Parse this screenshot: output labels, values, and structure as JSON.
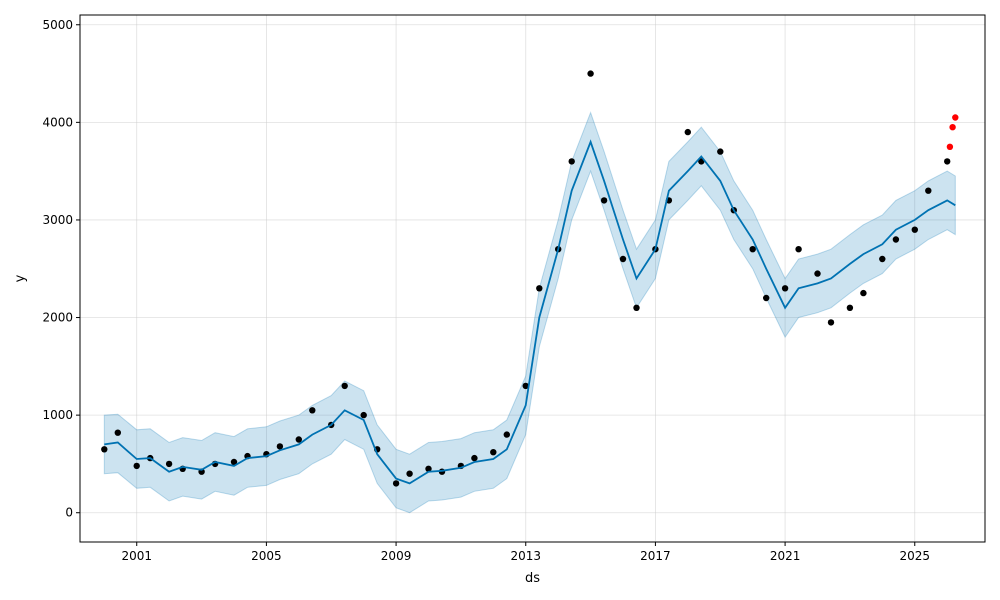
{
  "chart_data": {
    "type": "line",
    "title": "",
    "xlabel": "ds",
    "ylabel": "y",
    "xlim": [
      "1999-04-01",
      "2027-03-01"
    ],
    "ylim": [
      -300,
      5100
    ],
    "x_ticks": [
      "2001",
      "2005",
      "2009",
      "2013",
      "2017",
      "2021",
      "2025"
    ],
    "y_ticks": [
      0,
      1000,
      2000,
      3000,
      4000,
      5000
    ],
    "grid": true,
    "legend": "none",
    "colors": {
      "observed": "#000000",
      "forecast_line": "#0072B2",
      "uncertainty_band": "#0072B2",
      "recent_points": "#ff0000"
    },
    "series": [
      {
        "name": "",
        "role": "forecast yhat",
        "x": [
          "2000-01",
          "2000-06",
          "2001-01",
          "2001-06",
          "2002-01",
          "2002-06",
          "2003-01",
          "2003-06",
          "2004-01",
          "2004-06",
          "2005-01",
          "2005-06",
          "2006-01",
          "2006-06",
          "2007-01",
          "2007-06",
          "2008-01",
          "2008-06",
          "2009-01",
          "2009-06",
          "2010-01",
          "2010-06",
          "2011-01",
          "2011-06",
          "2012-01",
          "2012-06",
          "2013-01",
          "2013-06",
          "2014-01",
          "2014-06",
          "2015-01",
          "2015-06",
          "2016-01",
          "2016-06",
          "2017-01",
          "2017-06",
          "2018-01",
          "2018-06",
          "2019-01",
          "2019-06",
          "2020-01",
          "2020-06",
          "2021-01",
          "2021-06",
          "2022-01",
          "2022-06",
          "2023-01",
          "2023-06",
          "2024-01",
          "2024-06",
          "2025-01",
          "2025-06",
          "2026-01",
          "2026-04"
        ],
        "values": [
          700,
          720,
          550,
          560,
          420,
          470,
          440,
          520,
          480,
          560,
          580,
          640,
          700,
          800,
          900,
          1050,
          950,
          600,
          350,
          300,
          420,
          430,
          460,
          520,
          550,
          650,
          1100,
          2000,
          2700,
          3300,
          3800,
          3400,
          2800,
          2400,
          2700,
          3300,
          3500,
          3650,
          3400,
          3100,
          2800,
          2500,
          2100,
          2300,
          2350,
          2400,
          2550,
          2650,
          2750,
          2900,
          3000,
          3100,
          3200,
          3150
        ]
      },
      {
        "name": "",
        "role": "uncertainty upper",
        "x": [
          "2000-01",
          "2000-06",
          "2001-01",
          "2001-06",
          "2002-01",
          "2002-06",
          "2003-01",
          "2003-06",
          "2004-01",
          "2004-06",
          "2005-01",
          "2005-06",
          "2006-01",
          "2006-06",
          "2007-01",
          "2007-06",
          "2008-01",
          "2008-06",
          "2009-01",
          "2009-06",
          "2010-01",
          "2010-06",
          "2011-01",
          "2011-06",
          "2012-01",
          "2012-06",
          "2013-01",
          "2013-06",
          "2014-01",
          "2014-06",
          "2015-01",
          "2015-06",
          "2016-01",
          "2016-06",
          "2017-01",
          "2017-06",
          "2018-01",
          "2018-06",
          "2019-01",
          "2019-06",
          "2020-01",
          "2020-06",
          "2021-01",
          "2021-06",
          "2022-01",
          "2022-06",
          "2023-01",
          "2023-06",
          "2024-01",
          "2024-06",
          "2025-01",
          "2025-06",
          "2026-01",
          "2026-04"
        ],
        "values": [
          1000,
          1010,
          850,
          860,
          720,
          770,
          740,
          820,
          780,
          860,
          880,
          940,
          1000,
          1100,
          1200,
          1350,
          1250,
          900,
          650,
          600,
          720,
          730,
          760,
          820,
          850,
          950,
          1400,
          2300,
          3000,
          3600,
          4100,
          3700,
          3100,
          2700,
          3000,
          3600,
          3800,
          3950,
          3700,
          3400,
          3100,
          2800,
          2400,
          2600,
          2650,
          2700,
          2850,
          2950,
          3050,
          3200,
          3300,
          3400,
          3500,
          3450
        ]
      },
      {
        "name": "",
        "role": "uncertainty lower",
        "x": [
          "2000-01",
          "2000-06",
          "2001-01",
          "2001-06",
          "2002-01",
          "2002-06",
          "2003-01",
          "2003-06",
          "2004-01",
          "2004-06",
          "2005-01",
          "2005-06",
          "2006-01",
          "2006-06",
          "2007-01",
          "2007-06",
          "2008-01",
          "2008-06",
          "2009-01",
          "2009-06",
          "2010-01",
          "2010-06",
          "2011-01",
          "2011-06",
          "2012-01",
          "2012-06",
          "2013-01",
          "2013-06",
          "2014-01",
          "2014-06",
          "2015-01",
          "2015-06",
          "2016-01",
          "2016-06",
          "2017-01",
          "2017-06",
          "2018-01",
          "2018-06",
          "2019-01",
          "2019-06",
          "2020-01",
          "2020-06",
          "2021-01",
          "2021-06",
          "2022-01",
          "2022-06",
          "2023-01",
          "2023-06",
          "2024-01",
          "2024-06",
          "2025-01",
          "2025-06",
          "2026-01",
          "2026-04"
        ],
        "values": [
          400,
          410,
          250,
          260,
          120,
          170,
          140,
          220,
          180,
          260,
          280,
          340,
          400,
          500,
          600,
          750,
          650,
          300,
          50,
          0,
          120,
          130,
          160,
          220,
          250,
          350,
          800,
          1700,
          2400,
          3000,
          3500,
          3100,
          2500,
          2100,
          2400,
          3000,
          3200,
          3350,
          3100,
          2800,
          2500,
          2200,
          1800,
          2000,
          2050,
          2100,
          2250,
          2350,
          2450,
          2600,
          2700,
          2800,
          2900,
          2850
        ]
      },
      {
        "name": "",
        "role": "observed",
        "x": [
          "2000-01",
          "2000-06",
          "2001-01",
          "2001-06",
          "2002-01",
          "2002-06",
          "2003-01",
          "2003-06",
          "2004-01",
          "2004-06",
          "2005-01",
          "2005-06",
          "2006-01",
          "2006-06",
          "2007-01",
          "2007-06",
          "2008-01",
          "2008-06",
          "2009-01",
          "2009-06",
          "2010-01",
          "2010-06",
          "2011-01",
          "2011-06",
          "2012-01",
          "2012-06",
          "2013-01",
          "2013-06",
          "2014-01",
          "2014-06",
          "2015-01",
          "2015-06",
          "2016-01",
          "2016-06",
          "2017-01",
          "2017-06",
          "2018-01",
          "2018-06",
          "2019-01",
          "2019-06",
          "2020-01",
          "2020-06",
          "2021-01",
          "2021-06",
          "2022-01",
          "2022-06",
          "2023-01",
          "2023-06",
          "2024-01",
          "2024-06",
          "2025-01",
          "2025-06",
          "2026-01"
        ],
        "values": [
          650,
          820,
          480,
          560,
          500,
          450,
          420,
          500,
          520,
          580,
          600,
          680,
          750,
          1050,
          900,
          1300,
          1000,
          650,
          300,
          400,
          450,
          420,
          480,
          560,
          620,
          800,
          1300,
          2300,
          2700,
          3600,
          4500,
          3200,
          2600,
          2100,
          2700,
          3200,
          3900,
          3600,
          3700,
          3100,
          2700,
          2200,
          2300,
          2700,
          2450,
          1950,
          2100,
          2250,
          2600,
          2800,
          2900,
          3300,
          3600
        ]
      },
      {
        "name": "",
        "role": "recent observed (red)",
        "x": [
          "2026-02",
          "2026-03",
          "2026-04"
        ],
        "values": [
          3750,
          3950,
          4050
        ]
      }
    ]
  }
}
